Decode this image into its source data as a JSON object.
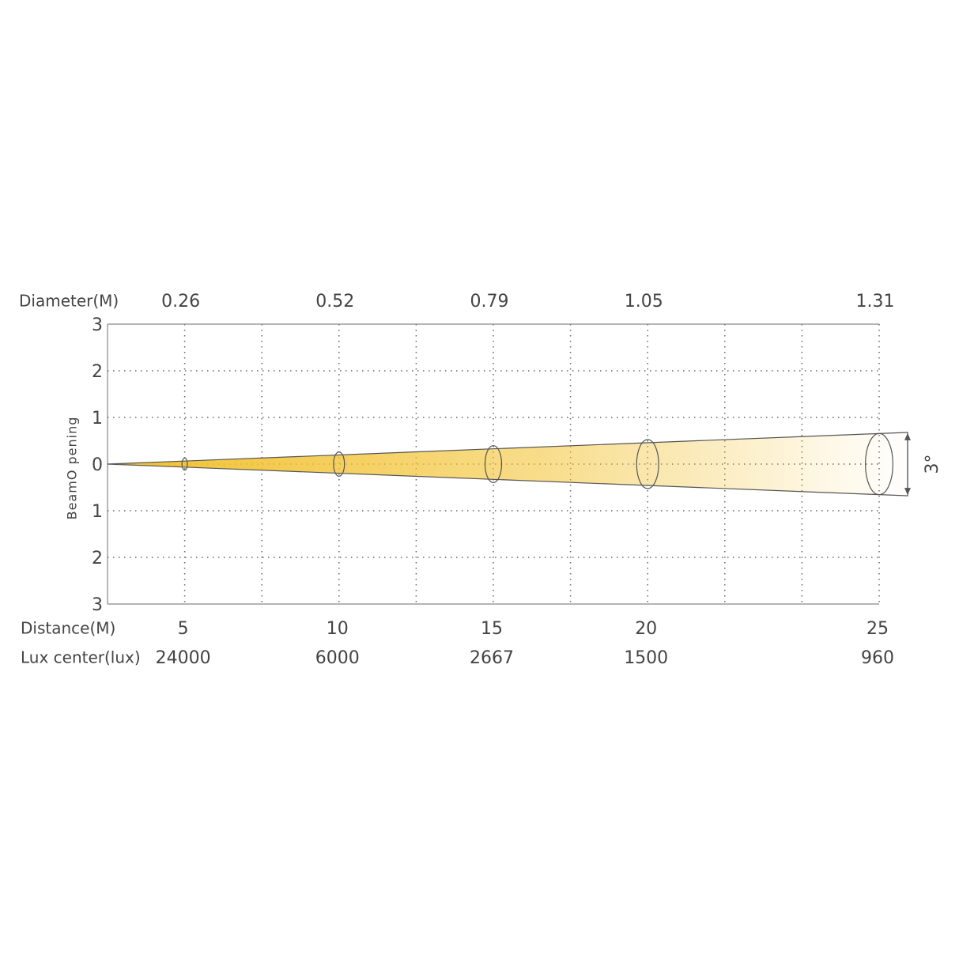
{
  "chart_data": {
    "type": "beam",
    "diameter_label": "Diameter(M)",
    "distance_label": "Distance(M)",
    "lux_label": "Lux center(lux)",
    "y_label": "BeamO pening",
    "beam_angle_label": "3°",
    "categories": [
      5,
      10,
      15,
      20,
      25
    ],
    "diameters": [
      0.26,
      0.52,
      0.79,
      1.05,
      1.31
    ],
    "lux": [
      24000,
      6000,
      2667,
      1500,
      960
    ],
    "color": "#f2c12e",
    "ylim": [
      -3,
      3
    ],
    "yticks": [
      3,
      2,
      1,
      0,
      {
        "value": -1,
        "label": "1"
      },
      {
        "value": -2,
        "label": "2"
      },
      {
        "value": -3,
        "label": "3"
      }
    ],
    "grid": true
  }
}
